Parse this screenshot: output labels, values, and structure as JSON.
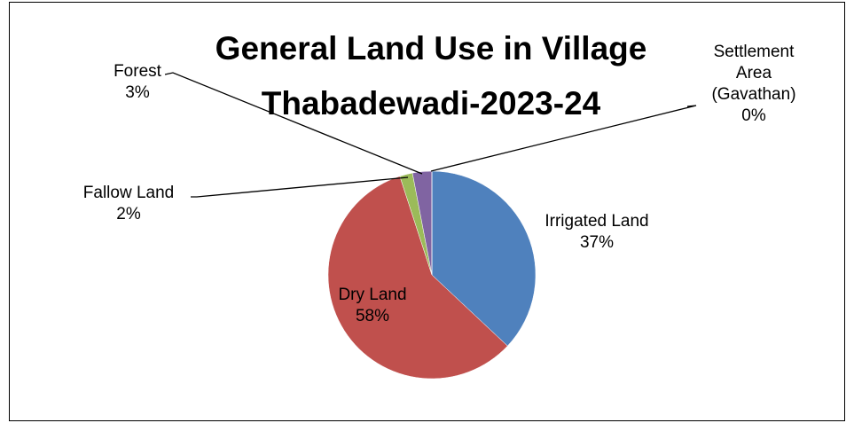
{
  "chart_data": {
    "type": "pie",
    "title": "General Land Use in Village Thabadewadi-2023-24",
    "categories": [
      "Irrigated Land",
      "Dry Land",
      "Fallow Land",
      "Forest",
      "Settlement Area (Gavathan)"
    ],
    "values": [
      37,
      58,
      2,
      3,
      0
    ],
    "value_labels": [
      "37%",
      "58%",
      "2%",
      "3%",
      "0%"
    ],
    "colors": [
      "#4f81bd",
      "#c0504d",
      "#9bbb59",
      "#8064a2",
      "#4bacc6"
    ]
  }
}
